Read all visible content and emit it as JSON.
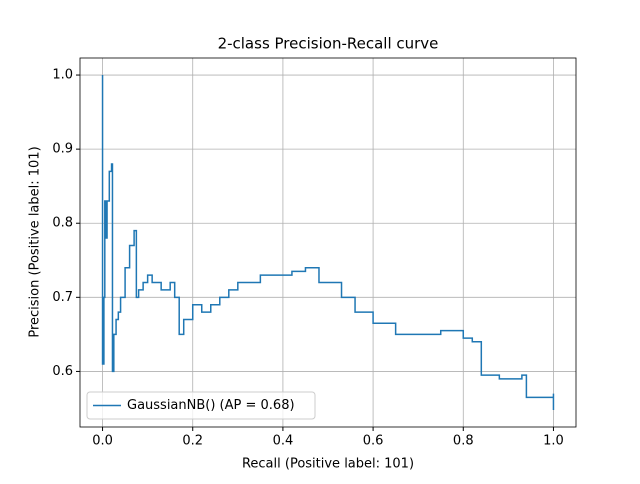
{
  "chart_data": {
    "type": "line",
    "title": "2-class Precision-Recall curve",
    "x_label": "Recall (Positive label: 101)",
    "y_label": "Precision (Positive label: 101)",
    "x": [
      0,
      0,
      0.003,
      0.005,
      0.008,
      0.01,
      0.015,
      0.02,
      0.022,
      0.025,
      0.03,
      0.035,
      0.04,
      0.05,
      0.06,
      0.07,
      0.075,
      0.08,
      0.09,
      0.1,
      0.11,
      0.13,
      0.15,
      0.16,
      0.17,
      0.18,
      0.2,
      0.22,
      0.24,
      0.26,
      0.28,
      0.3,
      0.32,
      0.35,
      0.38,
      0.42,
      0.45,
      0.48,
      0.52,
      0.53,
      0.56,
      0.6,
      0.65,
      0.7,
      0.75,
      0.78,
      0.8,
      0.82,
      0.84,
      0.88,
      0.93,
      0.94,
      0.97,
      1.0,
      1.0
    ],
    "series": [
      {
        "name": "GaussianNB() (AP = 0.68)",
        "color": "#1f77b4",
        "values": [
          1.0,
          0.61,
          0.7,
          0.83,
          0.78,
          0.83,
          0.87,
          0.88,
          0.6,
          0.65,
          0.67,
          0.68,
          0.7,
          0.74,
          0.77,
          0.79,
          0.7,
          0.71,
          0.72,
          0.73,
          0.72,
          0.71,
          0.72,
          0.7,
          0.65,
          0.67,
          0.69,
          0.68,
          0.69,
          0.7,
          0.71,
          0.72,
          0.72,
          0.73,
          0.73,
          0.735,
          0.74,
          0.72,
          0.72,
          0.7,
          0.68,
          0.665,
          0.65,
          0.65,
          0.655,
          0.655,
          0.645,
          0.64,
          0.595,
          0.59,
          0.595,
          0.565,
          0.565,
          0.57,
          0.548
        ]
      }
    ],
    "step": "post",
    "xlim": [
      -0.05,
      1.05
    ],
    "ylim": [
      0.525,
      1.023
    ],
    "xticks": [
      {
        "value": 0,
        "label": "0.0"
      },
      0.2,
      0.4,
      0.6,
      0.8,
      {
        "value": 1,
        "label": "1.0"
      }
    ],
    "yticks": [
      0.6,
      0.7,
      0.8,
      0.9,
      {
        "value": 1,
        "label": "1.0"
      }
    ],
    "grid": true,
    "legend": "lower left"
  }
}
